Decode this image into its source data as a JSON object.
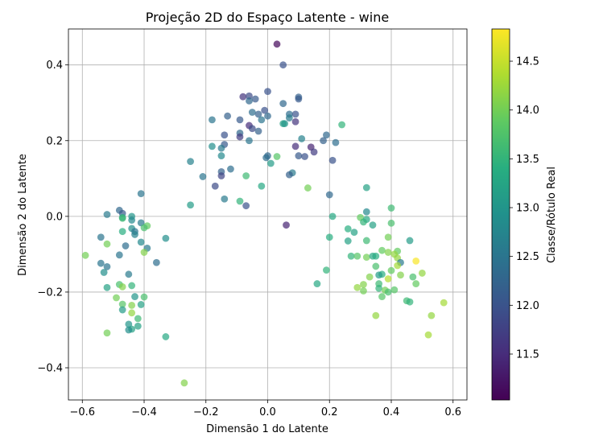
{
  "chart_data": {
    "type": "scatter",
    "title": "Projeção 2D do Espaço Latente - wine",
    "xlabel": "Dimensão 1 do Latente",
    "ylabel": "Dimensão 2 do Latente",
    "xlim": [
      -0.645,
      0.645
    ],
    "ylim": [
      -0.485,
      0.495
    ],
    "xticks": [
      -0.6,
      -0.4,
      -0.2,
      0.0,
      0.2,
      0.4,
      0.6
    ],
    "xtick_labels": [
      "−0.6",
      "−0.4",
      "−0.2",
      "0.0",
      "0.2",
      "0.4",
      "0.6"
    ],
    "yticks": [
      -0.4,
      -0.2,
      0.0,
      0.2,
      0.4
    ],
    "ytick_labels": [
      "−0.4",
      "−0.2",
      "0.0",
      "0.2",
      "0.4"
    ],
    "grid": true,
    "colormap": "viridis",
    "point_alpha": 0.7,
    "colorbar": {
      "label": "Classe/Rótulo Real",
      "range": [
        11.03,
        14.83
      ],
      "ticks": [
        11.5,
        12.0,
        12.5,
        13.0,
        13.5,
        14.0,
        14.5
      ],
      "tick_labels": [
        "11.5",
        "12.0",
        "12.5",
        "13.0",
        "13.5",
        "14.0",
        "14.5"
      ]
    },
    "points": [
      {
        "x": 0.03,
        "y": 0.455,
        "c": 11.1
      },
      {
        "x": 0.05,
        "y": 0.4,
        "c": 12.0
      },
      {
        "x": -0.08,
        "y": 0.316,
        "c": 11.6
      },
      {
        "x": -0.06,
        "y": 0.318,
        "c": 11.9
      },
      {
        "x": -0.04,
        "y": 0.31,
        "c": 12.1
      },
      {
        "x": -0.06,
        "y": 0.305,
        "c": 12.3
      },
      {
        "x": 0.0,
        "y": 0.33,
        "c": 12.0
      },
      {
        "x": 0.1,
        "y": 0.315,
        "c": 12.2
      },
      {
        "x": 0.1,
        "y": 0.31,
        "c": 12.1
      },
      {
        "x": 0.05,
        "y": 0.298,
        "c": 12.3
      },
      {
        "x": -0.05,
        "y": 0.275,
        "c": 12.4
      },
      {
        "x": -0.03,
        "y": 0.27,
        "c": 12.2
      },
      {
        "x": -0.01,
        "y": 0.28,
        "c": 12.0
      },
      {
        "x": 0.0,
        "y": 0.265,
        "c": 12.3
      },
      {
        "x": -0.02,
        "y": 0.255,
        "c": 12.5
      },
      {
        "x": 0.07,
        "y": 0.27,
        "c": 12.4
      },
      {
        "x": 0.09,
        "y": 0.27,
        "c": 12.0
      },
      {
        "x": 0.07,
        "y": 0.26,
        "c": 12.6
      },
      {
        "x": -0.13,
        "y": 0.265,
        "c": 12.2
      },
      {
        "x": -0.09,
        "y": 0.255,
        "c": 12.1
      },
      {
        "x": -0.18,
        "y": 0.255,
        "c": 12.5
      },
      {
        "x": 0.09,
        "y": 0.25,
        "c": 11.6
      },
      {
        "x": 0.05,
        "y": 0.245,
        "c": 13.2
      },
      {
        "x": 0.055,
        "y": 0.245,
        "c": 13.0
      },
      {
        "x": 0.24,
        "y": 0.242,
        "c": 13.5
      },
      {
        "x": -0.06,
        "y": 0.24,
        "c": 11.5
      },
      {
        "x": -0.05,
        "y": 0.232,
        "c": 11.9
      },
      {
        "x": -0.03,
        "y": 0.225,
        "c": 12.2
      },
      {
        "x": -0.09,
        "y": 0.22,
        "c": 12.3
      },
      {
        "x": -0.09,
        "y": 0.21,
        "c": 11.7
      },
      {
        "x": -0.14,
        "y": 0.215,
        "c": 12.0
      },
      {
        "x": -0.06,
        "y": 0.2,
        "c": 12.5
      },
      {
        "x": 0.11,
        "y": 0.205,
        "c": 12.7
      },
      {
        "x": 0.19,
        "y": 0.215,
        "c": 12.3
      },
      {
        "x": 0.18,
        "y": 0.2,
        "c": 12.2
      },
      {
        "x": 0.22,
        "y": 0.195,
        "c": 12.4
      },
      {
        "x": -0.14,
        "y": 0.19,
        "c": 12.1
      },
      {
        "x": -0.18,
        "y": 0.185,
        "c": 12.9
      },
      {
        "x": -0.15,
        "y": 0.18,
        "c": 12.6
      },
      {
        "x": 0.09,
        "y": 0.185,
        "c": 11.5
      },
      {
        "x": 0.14,
        "y": 0.183,
        "c": 11.4
      },
      {
        "x": 0.15,
        "y": 0.17,
        "c": 11.7
      },
      {
        "x": -0.15,
        "y": 0.16,
        "c": 12.8
      },
      {
        "x": 0.0,
        "y": 0.16,
        "c": 12.3
      },
      {
        "x": -0.005,
        "y": 0.155,
        "c": 12.4
      },
      {
        "x": 0.1,
        "y": 0.16,
        "c": 12.1
      },
      {
        "x": 0.12,
        "y": 0.158,
        "c": 12.0
      },
      {
        "x": 0.03,
        "y": 0.158,
        "c": 13.8
      },
      {
        "x": 0.21,
        "y": 0.148,
        "c": 12.0
      },
      {
        "x": -0.25,
        "y": 0.145,
        "c": 12.7
      },
      {
        "x": 0.01,
        "y": 0.14,
        "c": 13.1
      },
      {
        "x": -0.12,
        "y": 0.125,
        "c": 12.4
      },
      {
        "x": -0.15,
        "y": 0.118,
        "c": 12.2
      },
      {
        "x": -0.15,
        "y": 0.107,
        "c": 11.8
      },
      {
        "x": 0.08,
        "y": 0.115,
        "c": 12.6
      },
      {
        "x": 0.07,
        "y": 0.11,
        "c": 12.2
      },
      {
        "x": -0.07,
        "y": 0.107,
        "c": 13.6
      },
      {
        "x": -0.21,
        "y": 0.105,
        "c": 12.5
      },
      {
        "x": -0.17,
        "y": 0.08,
        "c": 11.9
      },
      {
        "x": -0.02,
        "y": 0.08,
        "c": 13.3
      },
      {
        "x": 0.13,
        "y": 0.075,
        "c": 14.0
      },
      {
        "x": 0.32,
        "y": 0.076,
        "c": 13.2
      },
      {
        "x": 0.2,
        "y": 0.057,
        "c": 12.3
      },
      {
        "x": -0.41,
        "y": 0.06,
        "c": 12.5
      },
      {
        "x": -0.14,
        "y": 0.046,
        "c": 12.6
      },
      {
        "x": -0.09,
        "y": 0.04,
        "c": 13.5
      },
      {
        "x": -0.07,
        "y": 0.028,
        "c": 12.0
      },
      {
        "x": -0.25,
        "y": 0.03,
        "c": 13.1
      },
      {
        "x": 0.06,
        "y": -0.023,
        "c": 11.4
      },
      {
        "x": 0.4,
        "y": 0.022,
        "c": 13.6
      },
      {
        "x": -0.48,
        "y": 0.016,
        "c": 12.3
      },
      {
        "x": -0.47,
        "y": 0.008,
        "c": 12.1
      },
      {
        "x": -0.52,
        "y": 0.005,
        "c": 12.6
      },
      {
        "x": -0.44,
        "y": 0.0,
        "c": 13.0
      },
      {
        "x": -0.47,
        "y": -0.003,
        "c": 13.3
      },
      {
        "x": -0.47,
        "y": -0.005,
        "c": 13.6
      },
      {
        "x": -0.44,
        "y": -0.01,
        "c": 12.8
      },
      {
        "x": 0.21,
        "y": 0.0,
        "c": 13.3
      },
      {
        "x": 0.32,
        "y": 0.012,
        "c": 12.8
      },
      {
        "x": 0.3,
        "y": -0.003,
        "c": 13.9
      },
      {
        "x": 0.32,
        "y": -0.008,
        "c": 13.3
      },
      {
        "x": 0.31,
        "y": -0.015,
        "c": 13.5
      },
      {
        "x": -0.41,
        "y": -0.017,
        "c": 12.6
      },
      {
        "x": 0.4,
        "y": -0.018,
        "c": 13.7
      },
      {
        "x": -0.39,
        "y": -0.025,
        "c": 13.9
      },
      {
        "x": -0.4,
        "y": -0.03,
        "c": 13.7
      },
      {
        "x": -0.44,
        "y": -0.032,
        "c": 12.9
      },
      {
        "x": 0.34,
        "y": -0.023,
        "c": 13.2
      },
      {
        "x": 0.26,
        "y": -0.033,
        "c": 13.4
      },
      {
        "x": 0.28,
        "y": -0.042,
        "c": 13.2
      },
      {
        "x": -0.47,
        "y": -0.04,
        "c": 13.4
      },
      {
        "x": -0.43,
        "y": -0.04,
        "c": 12.5
      },
      {
        "x": -0.43,
        "y": -0.048,
        "c": 12.7
      },
      {
        "x": 0.39,
        "y": -0.055,
        "c": 14.0
      },
      {
        "x": -0.54,
        "y": -0.055,
        "c": 12.5
      },
      {
        "x": -0.33,
        "y": -0.058,
        "c": 12.9
      },
      {
        "x": 0.2,
        "y": -0.055,
        "c": 13.4
      },
      {
        "x": 0.32,
        "y": -0.064,
        "c": 13.6
      },
      {
        "x": 0.26,
        "y": -0.065,
        "c": 13.2
      },
      {
        "x": 0.46,
        "y": -0.064,
        "c": 13.1
      },
      {
        "x": -0.41,
        "y": -0.068,
        "c": 12.8
      },
      {
        "x": -0.52,
        "y": -0.073,
        "c": 14.0
      },
      {
        "x": -0.46,
        "y": -0.078,
        "c": 12.4
      },
      {
        "x": -0.39,
        "y": -0.084,
        "c": 12.6
      },
      {
        "x": 0.37,
        "y": -0.09,
        "c": 13.9
      },
      {
        "x": 0.39,
        "y": -0.095,
        "c": 14.1
      },
      {
        "x": 0.42,
        "y": -0.092,
        "c": 13.9
      },
      {
        "x": 0.41,
        "y": -0.1,
        "c": 14.2
      },
      {
        "x": -0.4,
        "y": -0.095,
        "c": 14.1
      },
      {
        "x": -0.59,
        "y": -0.103,
        "c": 14.0
      },
      {
        "x": -0.48,
        "y": -0.102,
        "c": 12.5
      },
      {
        "x": 0.27,
        "y": -0.105,
        "c": 13.5
      },
      {
        "x": 0.29,
        "y": -0.105,
        "c": 13.8
      },
      {
        "x": 0.32,
        "y": -0.108,
        "c": 14.0
      },
      {
        "x": 0.35,
        "y": -0.105,
        "c": 13.4
      },
      {
        "x": 0.34,
        "y": -0.105,
        "c": 13.3
      },
      {
        "x": 0.42,
        "y": -0.11,
        "c": 14.2
      },
      {
        "x": 0.43,
        "y": -0.122,
        "c": 12.6
      },
      {
        "x": -0.36,
        "y": -0.122,
        "c": 12.4
      },
      {
        "x": -0.54,
        "y": -0.124,
        "c": 12.5
      },
      {
        "x": 0.48,
        "y": -0.118,
        "c": 14.8
      },
      {
        "x": 0.42,
        "y": -0.13,
        "c": 14.3
      },
      {
        "x": 0.35,
        "y": -0.132,
        "c": 13.7
      },
      {
        "x": -0.52,
        "y": -0.133,
        "c": 12.5
      },
      {
        "x": 0.19,
        "y": -0.142,
        "c": 13.5
      },
      {
        "x": 0.4,
        "y": -0.143,
        "c": 13.9
      },
      {
        "x": -0.53,
        "y": -0.148,
        "c": 12.9
      },
      {
        "x": 0.5,
        "y": -0.15,
        "c": 14.2
      },
      {
        "x": -0.45,
        "y": -0.153,
        "c": 12.6
      },
      {
        "x": 0.37,
        "y": -0.153,
        "c": 13.4
      },
      {
        "x": 0.36,
        "y": -0.155,
        "c": 13.1
      },
      {
        "x": 0.43,
        "y": -0.155,
        "c": 14.1
      },
      {
        "x": 0.33,
        "y": -0.16,
        "c": 14.1
      },
      {
        "x": 0.47,
        "y": -0.16,
        "c": 13.7
      },
      {
        "x": 0.39,
        "y": -0.165,
        "c": 14.4
      },
      {
        "x": 0.16,
        "y": -0.178,
        "c": 13.3
      },
      {
        "x": 0.36,
        "y": -0.178,
        "c": 13.6
      },
      {
        "x": 0.48,
        "y": -0.178,
        "c": 13.9
      },
      {
        "x": 0.31,
        "y": -0.18,
        "c": 14.1
      },
      {
        "x": -0.48,
        "y": -0.18,
        "c": 13.7
      },
      {
        "x": -0.44,
        "y": -0.183,
        "c": 13.5
      },
      {
        "x": -0.47,
        "y": -0.186,
        "c": 14.1
      },
      {
        "x": -0.52,
        "y": -0.188,
        "c": 13.2
      },
      {
        "x": 0.29,
        "y": -0.188,
        "c": 14.2
      },
      {
        "x": 0.36,
        "y": -0.19,
        "c": 13.5
      },
      {
        "x": 0.38,
        "y": -0.195,
        "c": 14.0
      },
      {
        "x": 0.41,
        "y": -0.194,
        "c": 13.8
      },
      {
        "x": 0.31,
        "y": -0.197,
        "c": 14.0
      },
      {
        "x": 0.39,
        "y": -0.2,
        "c": 13.7
      },
      {
        "x": 0.37,
        "y": -0.212,
        "c": 13.8
      },
      {
        "x": -0.43,
        "y": -0.212,
        "c": 13.0
      },
      {
        "x": -0.4,
        "y": -0.213,
        "c": 13.7
      },
      {
        "x": -0.49,
        "y": -0.215,
        "c": 14.0
      },
      {
        "x": 0.45,
        "y": -0.223,
        "c": 13.6
      },
      {
        "x": 0.46,
        "y": -0.226,
        "c": 13.5
      },
      {
        "x": 0.57,
        "y": -0.228,
        "c": 14.3
      },
      {
        "x": -0.47,
        "y": -0.232,
        "c": 13.8
      },
      {
        "x": -0.41,
        "y": -0.233,
        "c": 13.2
      },
      {
        "x": -0.44,
        "y": -0.235,
        "c": 14.1
      },
      {
        "x": -0.47,
        "y": -0.247,
        "c": 13.1
      },
      {
        "x": -0.44,
        "y": -0.255,
        "c": 14.2
      },
      {
        "x": 0.35,
        "y": -0.262,
        "c": 14.2
      },
      {
        "x": 0.53,
        "y": -0.262,
        "c": 14.2
      },
      {
        "x": -0.42,
        "y": -0.27,
        "c": 13.6
      },
      {
        "x": -0.45,
        "y": -0.285,
        "c": 13.0
      },
      {
        "x": -0.42,
        "y": -0.29,
        "c": 13.2
      },
      {
        "x": -0.44,
        "y": -0.298,
        "c": 13.2
      },
      {
        "x": -0.45,
        "y": -0.3,
        "c": 12.9
      },
      {
        "x": -0.52,
        "y": -0.308,
        "c": 14.0
      },
      {
        "x": 0.52,
        "y": -0.313,
        "c": 14.3
      },
      {
        "x": -0.33,
        "y": -0.318,
        "c": 13.3
      },
      {
        "x": -0.27,
        "y": -0.44,
        "c": 14.1
      }
    ]
  }
}
